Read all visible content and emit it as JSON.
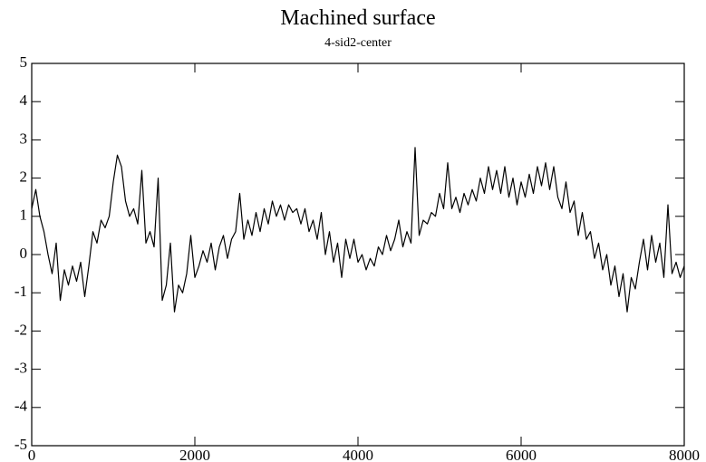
{
  "chart_data": {
    "type": "line",
    "title": "Machined surface",
    "subtitle": "4-sid2-center",
    "x": [
      0,
      50,
      100,
      150,
      200,
      250,
      300,
      350,
      400,
      450,
      500,
      550,
      600,
      650,
      700,
      750,
      800,
      850,
      900,
      950,
      1000,
      1050,
      1100,
      1150,
      1200,
      1250,
      1300,
      1350,
      1400,
      1450,
      1500,
      1550,
      1600,
      1650,
      1700,
      1750,
      1800,
      1850,
      1900,
      1950,
      2000,
      2050,
      2100,
      2150,
      2200,
      2250,
      2300,
      2350,
      2400,
      2450,
      2500,
      2550,
      2600,
      2650,
      2700,
      2750,
      2800,
      2850,
      2900,
      2950,
      3000,
      3050,
      3100,
      3150,
      3200,
      3250,
      3300,
      3350,
      3400,
      3450,
      3500,
      3550,
      3600,
      3650,
      3700,
      3750,
      3800,
      3850,
      3900,
      3950,
      4000,
      4050,
      4100,
      4150,
      4200,
      4250,
      4300,
      4350,
      4400,
      4450,
      4500,
      4550,
      4600,
      4650,
      4700,
      4750,
      4800,
      4850,
      4900,
      4950,
      5000,
      5050,
      5100,
      5150,
      5200,
      5250,
      5300,
      5350,
      5400,
      5450,
      5500,
      5550,
      5600,
      5650,
      5700,
      5750,
      5800,
      5850,
      5900,
      5950,
      6000,
      6050,
      6100,
      6150,
      6200,
      6250,
      6300,
      6350,
      6400,
      6450,
      6500,
      6550,
      6600,
      6650,
      6700,
      6750,
      6800,
      6850,
      6900,
      6950,
      7000,
      7050,
      7100,
      7150,
      7200,
      7250,
      7300,
      7350,
      7400,
      7450,
      7500,
      7550,
      7600,
      7650,
      7700,
      7750,
      7800,
      7850,
      7900,
      7950,
      8000
    ],
    "series": [
      {
        "color": "#000000",
        "values": [
          1.2,
          1.7,
          1.0,
          0.6,
          0.0,
          -0.5,
          0.3,
          -1.2,
          -0.4,
          -0.8,
          -0.3,
          -0.7,
          -0.2,
          -1.1,
          -0.3,
          0.6,
          0.3,
          0.9,
          0.7,
          1.0,
          1.9,
          2.6,
          2.3,
          1.4,
          1.0,
          1.2,
          0.8,
          2.2,
          0.3,
          0.6,
          0.2,
          2.0,
          -1.2,
          -0.8,
          0.3,
          -1.5,
          -0.8,
          -1.0,
          -0.5,
          0.5,
          -0.6,
          -0.3,
          0.1,
          -0.2,
          0.3,
          -0.4,
          0.2,
          0.5,
          -0.1,
          0.4,
          0.6,
          1.6,
          0.4,
          0.9,
          0.5,
          1.1,
          0.6,
          1.2,
          0.8,
          1.4,
          1.0,
          1.3,
          0.9,
          1.3,
          1.1,
          1.2,
          0.8,
          1.2,
          0.6,
          0.9,
          0.4,
          1.1,
          0.0,
          0.6,
          -0.2,
          0.3,
          -0.6,
          0.4,
          -0.1,
          0.4,
          -0.2,
          0.0,
          -0.4,
          -0.1,
          -0.3,
          0.2,
          0.0,
          0.5,
          0.1,
          0.4,
          0.9,
          0.2,
          0.6,
          0.3,
          2.8,
          0.5,
          0.9,
          0.8,
          1.1,
          1.0,
          1.6,
          1.2,
          2.4,
          1.2,
          1.5,
          1.1,
          1.6,
          1.3,
          1.7,
          1.4,
          2.0,
          1.6,
          2.3,
          1.7,
          2.2,
          1.6,
          2.3,
          1.5,
          2.0,
          1.3,
          1.9,
          1.5,
          2.1,
          1.6,
          2.3,
          1.8,
          2.4,
          1.7,
          2.3,
          1.5,
          1.2,
          1.9,
          1.1,
          1.4,
          0.5,
          1.1,
          0.4,
          0.6,
          -0.1,
          0.3,
          -0.4,
          0.0,
          -0.8,
          -0.3,
          -1.1,
          -0.5,
          -1.5,
          -0.6,
          -0.9,
          -0.2,
          0.4,
          -0.4,
          0.5,
          -0.2,
          0.3,
          -0.6,
          1.3,
          -0.5,
          -0.2,
          -0.6,
          -0.3
        ]
      }
    ],
    "xlim": [
      0,
      8000
    ],
    "xticks": [
      0,
      2000,
      4000,
      6000,
      8000
    ],
    "ylim": [
      -5,
      5
    ],
    "yticks": [
      -5,
      -4,
      -3,
      -2,
      -1,
      0,
      1,
      2,
      3,
      4,
      5
    ]
  }
}
